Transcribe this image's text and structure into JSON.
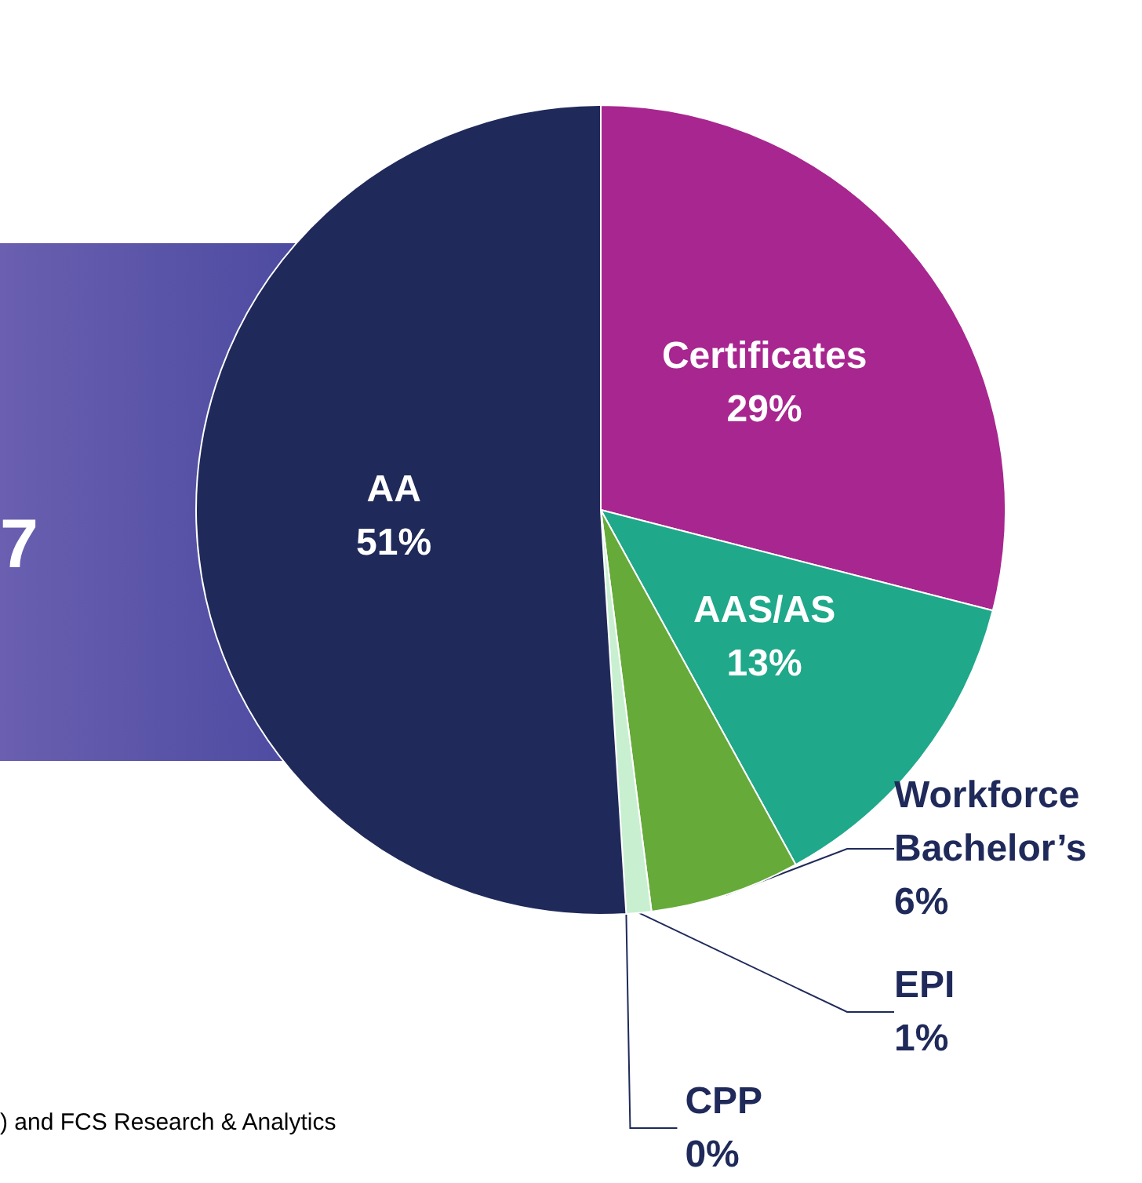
{
  "chart_data": {
    "type": "pie",
    "categories": [
      "Certificates",
      "AAS/AS",
      "Workforce Bachelor’s",
      "EPI",
      "CPP",
      "AA"
    ],
    "values": [
      29,
      13,
      6,
      1,
      0,
      51
    ],
    "colors": [
      "#a8268f",
      "#1fa88a",
      "#66aa3a",
      "#c8f0d0",
      "#e8f4e0",
      "#1f2a5a"
    ],
    "value_labels": [
      "29%",
      "13%",
      "6%",
      "1%",
      "0%",
      "51%"
    ],
    "annotations": [
      "7",
      ") and FCS Research & Analytics"
    ]
  }
}
